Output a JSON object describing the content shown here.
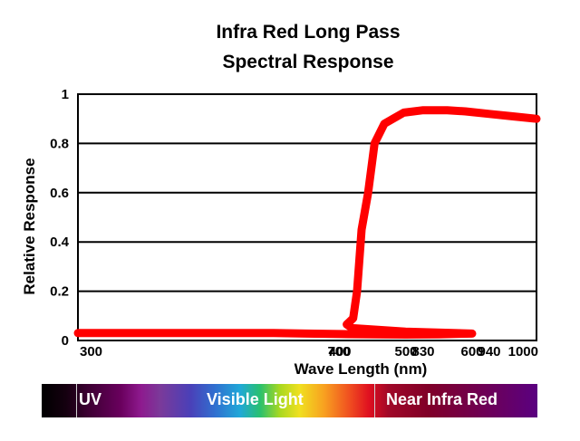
{
  "chart_data": {
    "type": "line",
    "title": "Infra Red Long Pass",
    "subtitle": "Spectral Response",
    "xlabel": "Wave Length (nm)",
    "ylabel": "Relative Response",
    "x_tick_labels": [
      "300",
      "400",
      "500",
      "600",
      "700",
      "830",
      "940",
      "1000"
    ],
    "y_tick_labels": [
      "0",
      "0.2",
      "0.4",
      "0.6",
      "0.8",
      "1"
    ],
    "ylim": [
      0,
      1
    ],
    "grid": true,
    "series": [
      {
        "color": "#ff0000",
        "x": [
          265,
          300,
          350,
          400,
          450,
          500,
          550,
          600,
          650,
          690,
          712,
          722,
          728,
          735,
          745,
          755,
          770,
          800,
          830,
          870,
          900,
          940,
          970,
          1000
        ],
        "y": [
          0.03,
          0.03,
          0.028,
          0.026,
          0.025,
          0.024,
          0.025,
          0.028,
          0.036,
          0.05,
          0.065,
          0.09,
          0.2,
          0.45,
          0.6,
          0.8,
          0.88,
          0.925,
          0.935,
          0.935,
          0.93,
          0.92,
          0.91,
          0.9
        ]
      }
    ]
  },
  "spectrum_bar": {
    "labels": {
      "uv": "UV",
      "visible": "Visible Light",
      "near_ir": "Near Infra Red"
    }
  }
}
